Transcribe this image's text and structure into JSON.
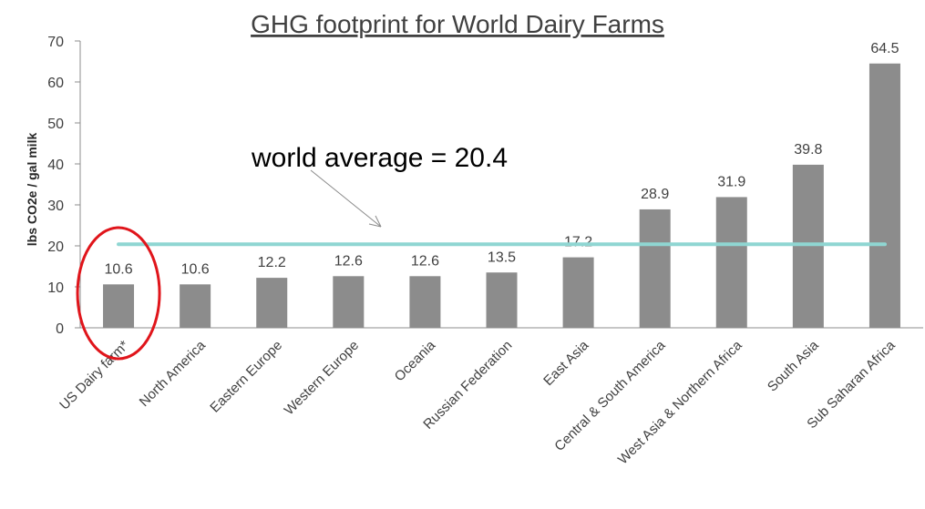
{
  "chart_data": {
    "type": "bar",
    "title": "GHG footprint for World Dairy Farms",
    "ylabel": "lbs CO2e / gal milk",
    "xlabel": "",
    "ylim": [
      0,
      70
    ],
    "yticks": [
      0,
      10,
      20,
      30,
      40,
      50,
      60,
      70
    ],
    "grid": false,
    "categories": [
      "US Dairy farm*",
      "North America",
      "Eastern Europe",
      "Western Europe",
      "Oceania",
      "Russian Federation",
      "East Asia",
      "Central & South America",
      "West Asia & Northern Africa",
      "South Asia",
      "Sub Saharan Africa"
    ],
    "values": [
      10.6,
      10.6,
      12.2,
      12.6,
      12.6,
      13.5,
      17.2,
      28.9,
      31.9,
      39.8,
      64.5
    ],
    "data_labels": [
      "10.6",
      "10.6",
      "12.2",
      "12.6",
      "12.6",
      "13.5",
      "17.2",
      "28.9",
      "31.9",
      "39.8",
      "64.5"
    ],
    "bar_color": "#8c8c8c",
    "reference_line": {
      "value": 20.4,
      "label": "world average = 20.4",
      "color": "#8fd6d2"
    },
    "highlight": {
      "category": "US Dairy farm*",
      "shape": "ellipse",
      "color": "#e0151b"
    }
  }
}
